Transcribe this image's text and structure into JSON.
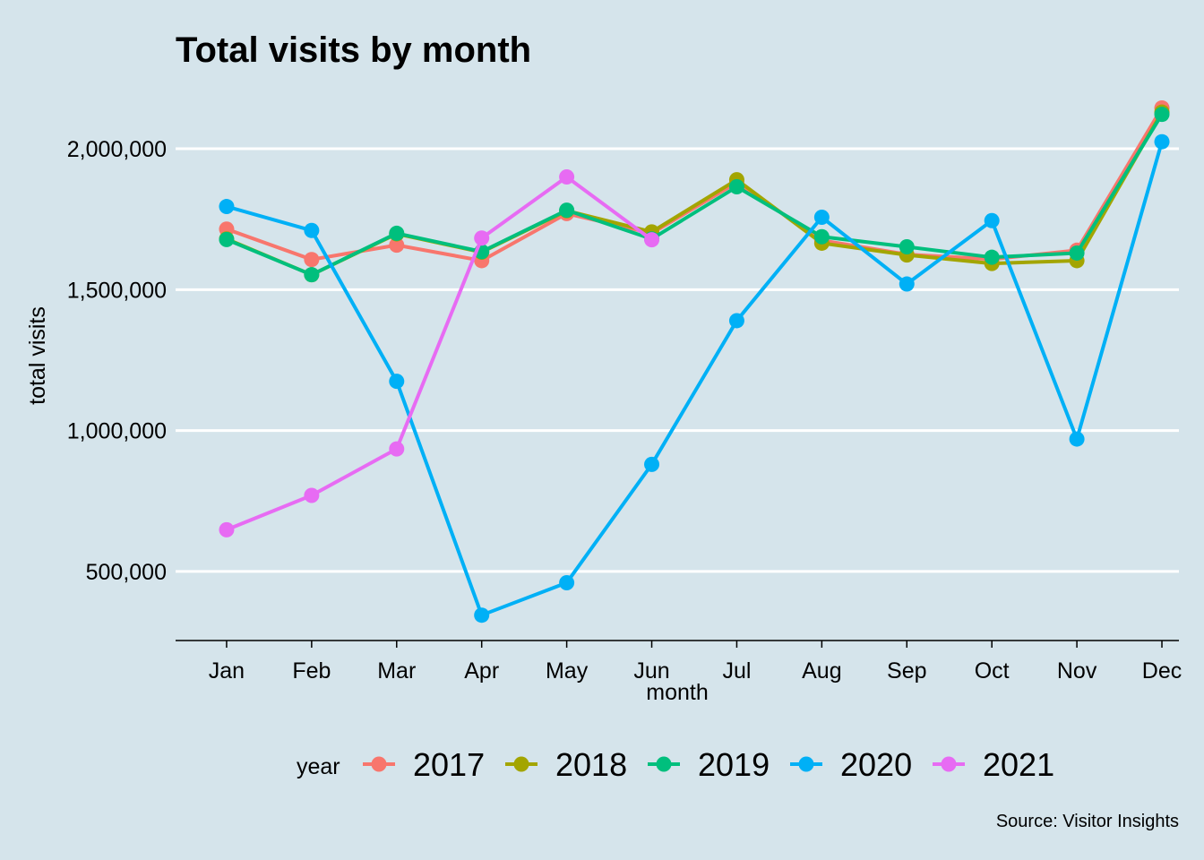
{
  "chart_data": {
    "type": "line",
    "title": "Total visits by month",
    "xlabel": "month",
    "ylabel": "total visits",
    "caption": "Source: Visitor Insights",
    "legend_title": "year",
    "legend_position": "bottom",
    "grid": "horizontal major only",
    "ylim": [
      255000,
      2210000
    ],
    "y_ticks": [
      500000,
      1000000,
      1500000,
      2000000
    ],
    "y_tick_labels": [
      "500,000",
      "1,000,000",
      "1,500,000",
      "2,000,000"
    ],
    "categories": [
      "Jan",
      "Feb",
      "Mar",
      "Apr",
      "May",
      "Jun",
      "Jul",
      "Aug",
      "Sep",
      "Oct",
      "Nov",
      "Dec"
    ],
    "series": [
      {
        "name": "2017",
        "color": "#f8766d",
        "values": [
          1715000,
          1607000,
          1658000,
          1603000,
          1770000,
          1700000,
          1880000,
          1675000,
          1625000,
          1608000,
          1640000,
          2145000
        ]
      },
      {
        "name": "2018",
        "color": "#a3a500",
        "values": [
          1680000,
          1553000,
          1698000,
          1633000,
          1780000,
          1705000,
          1890000,
          1665000,
          1623000,
          1593000,
          1603000,
          2130000
        ]
      },
      {
        "name": "2019",
        "color": "#00bf7d",
        "values": [
          1678000,
          1553000,
          1700000,
          1635000,
          1782000,
          1680000,
          1865000,
          1688000,
          1652000,
          1615000,
          1630000,
          2122000
        ]
      },
      {
        "name": "2020",
        "color": "#00b0f6",
        "values": [
          1795000,
          1710000,
          1175000,
          345000,
          460000,
          880000,
          1390000,
          1757000,
          1520000,
          1745000,
          970000,
          2025000
        ]
      },
      {
        "name": "2021",
        "color": "#e76bf3",
        "values": [
          648000,
          770000,
          935000,
          1683000,
          1900000,
          1677000,
          null,
          null,
          null,
          null,
          null,
          null
        ]
      }
    ]
  }
}
